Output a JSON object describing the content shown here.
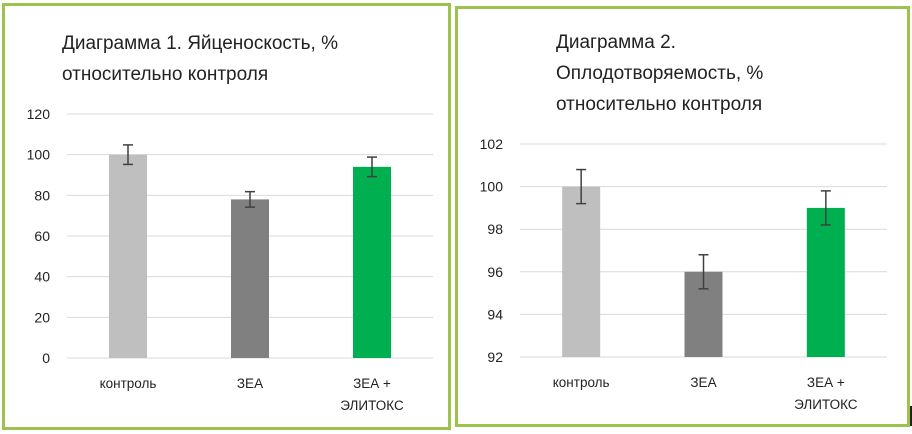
{
  "chart_data": [
    {
      "type": "bar",
      "title_lines": [
        "Диаграмма 1. Яйценоскость, %",
        "относительно контроля"
      ],
      "categories": [
        [
          "контроль"
        ],
        [
          "ЗЕА"
        ],
        [
          "ЗЕА +",
          "ЭЛИТОКС"
        ]
      ],
      "values": [
        100,
        78,
        94
      ],
      "errors": [
        4.8,
        3.8,
        4.8
      ],
      "colors": [
        "#bfbfbf",
        "#808080",
        "#00b050"
      ],
      "ylim": [
        0,
        120
      ],
      "yticks": [
        "0",
        "20",
        "40",
        "60",
        "80",
        "100",
        "120"
      ],
      "grid": true
    },
    {
      "type": "bar",
      "title_lines": [
        "Диаграмма 2.",
        "Оплодотворяемость, %",
        "относительно контроля"
      ],
      "categories": [
        [
          "контроль"
        ],
        [
          "ЗЕА"
        ],
        [
          "ЗЕА +",
          "ЭЛИТОКС"
        ]
      ],
      "values": [
        100,
        96,
        99
      ],
      "errors": [
        0.8,
        0.8,
        0.8
      ],
      "colors": [
        "#bfbfbf",
        "#808080",
        "#00b050"
      ],
      "ylim": [
        92,
        102
      ],
      "yticks": [
        "92",
        "94",
        "96",
        "98",
        "100",
        "102"
      ],
      "grid": true
    }
  ]
}
